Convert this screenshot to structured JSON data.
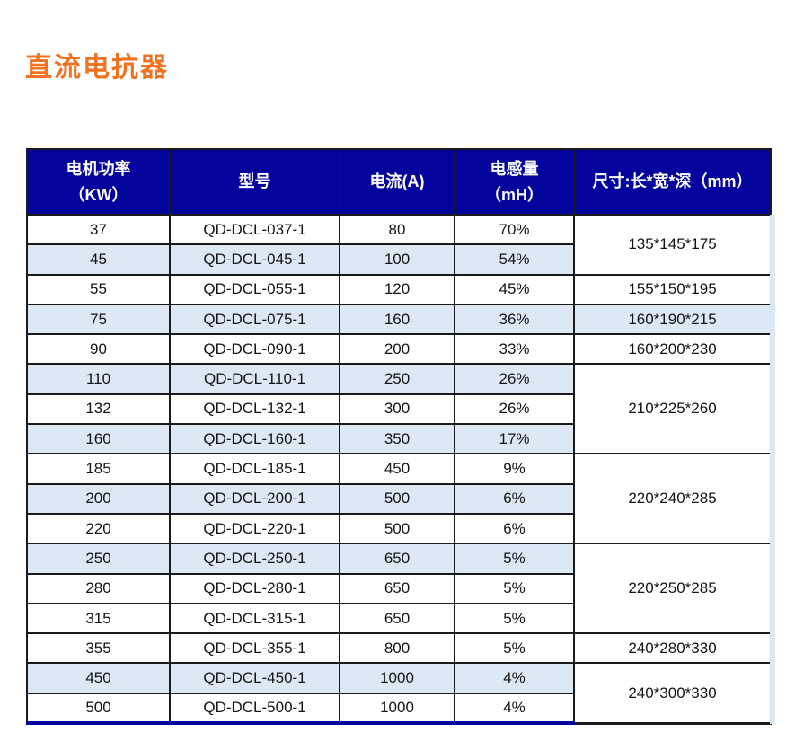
{
  "page": {
    "title": "直流电抗器",
    "title_color": "#EF7320",
    "background_color": "#FFFFFF"
  },
  "table": {
    "colors": {
      "header_bg": "#04049C",
      "header_text": "#FFFFFF",
      "stripe_bg": "#DCE9F5",
      "border": "#1A1A1A",
      "bottom_bar": "#04049C"
    },
    "header": {
      "columns": [
        {
          "line1": "电机功率",
          "line2": "（KW）"
        },
        {
          "line1": "型号"
        },
        {
          "line1": "电流(A)"
        },
        {
          "line1": "电感量",
          "line2": "（mH）"
        },
        {
          "line1": "尺寸:长*宽*深（mm）"
        }
      ]
    },
    "rows": [
      {
        "power": "37",
        "model": "QD-DCL-037-1",
        "current": "80",
        "inductance": "70%",
        "shaded": false,
        "dim": {
          "text": "135*145*175",
          "span": 2,
          "shaded": false
        }
      },
      {
        "power": "45",
        "model": "QD-DCL-045-1",
        "current": "100",
        "inductance": "54%",
        "shaded": true
      },
      {
        "power": "55",
        "model": "QD-DCL-055-1",
        "current": "120",
        "inductance": "45%",
        "shaded": false,
        "dim": {
          "text": "155*150*195",
          "span": 1,
          "shaded": false
        }
      },
      {
        "power": "75",
        "model": "QD-DCL-075-1",
        "current": "160",
        "inductance": "36%",
        "shaded": true,
        "dim": {
          "text": "160*190*215",
          "span": 1,
          "shaded": true
        }
      },
      {
        "power": "90",
        "model": "QD-DCL-090-1",
        "current": "200",
        "inductance": "33%",
        "shaded": false,
        "dim": {
          "text": "160*200*230",
          "span": 1,
          "shaded": false
        }
      },
      {
        "power": "110",
        "model": "QD-DCL-110-1",
        "current": "250",
        "inductance": "26%",
        "shaded": true,
        "dim": {
          "text": "210*225*260",
          "span": 3,
          "shaded": false
        }
      },
      {
        "power": "132",
        "model": "QD-DCL-132-1",
        "current": "300",
        "inductance": "26%",
        "shaded": false
      },
      {
        "power": "160",
        "model": "QD-DCL-160-1",
        "current": "350",
        "inductance": "17%",
        "shaded": true
      },
      {
        "power": "185",
        "model": "QD-DCL-185-1",
        "current": "450",
        "inductance": "9%",
        "shaded": false,
        "dim": {
          "text": "220*240*285",
          "span": 3,
          "shaded": false
        }
      },
      {
        "power": "200",
        "model": "QD-DCL-200-1",
        "current": "500",
        "inductance": "6%",
        "shaded": true
      },
      {
        "power": "220",
        "model": "QD-DCL-220-1",
        "current": "500",
        "inductance": "6%",
        "shaded": false
      },
      {
        "power": "250",
        "model": "QD-DCL-250-1",
        "current": "650",
        "inductance": "5%",
        "shaded": true,
        "dim": {
          "text": "220*250*285",
          "span": 3,
          "shaded": false
        }
      },
      {
        "power": "280",
        "model": "QD-DCL-280-1",
        "current": "650",
        "inductance": "5%",
        "shaded": false
      },
      {
        "power": "315",
        "model": "QD-DCL-315-1",
        "current": "650",
        "inductance": "5%",
        "shaded": false
      },
      {
        "power": "355",
        "model": "QD-DCL-355-1",
        "current": "800",
        "inductance": "5%",
        "shaded": false,
        "dim": {
          "text": "240*280*330",
          "span": 1,
          "shaded": false
        }
      },
      {
        "power": "450",
        "model": "QD-DCL-450-1",
        "current": "1000",
        "inductance": "4%",
        "shaded": true,
        "dim": {
          "text": "240*300*330",
          "span": 2,
          "shaded": false,
          "bottom": true
        }
      },
      {
        "power": "500",
        "model": "QD-DCL-500-1",
        "current": "1000",
        "inductance": "4%",
        "shaded": false
      }
    ]
  }
}
